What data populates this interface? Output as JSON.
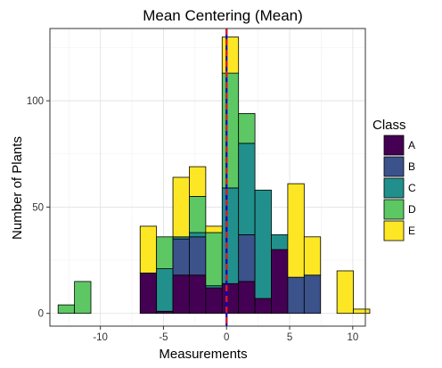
{
  "chart_data": {
    "type": "bar",
    "stacked": true,
    "title": "Mean Centering (Mean)",
    "xlabel": "Measurements",
    "ylabel": "Number of Plants",
    "xlim": [
      -14,
      11
    ],
    "ylim": [
      -6,
      134
    ],
    "x_ticks": [
      -10,
      -5,
      0,
      5,
      10
    ],
    "y_ticks": [
      0,
      50,
      100
    ],
    "x_tick_labels": [
      "-10",
      "-5",
      "0",
      "5",
      "10"
    ],
    "y_tick_labels": [
      "0",
      "50",
      "100"
    ],
    "bin_width": 1.3,
    "bin_centers": [
      -12.7,
      -11.4,
      -6.2,
      -4.9,
      -3.6,
      -2.3,
      -1.0,
      0.3,
      1.6,
      2.9,
      4.2,
      5.5,
      6.8,
      9.4,
      10.7
    ],
    "legend": {
      "title": "Class",
      "position": "right"
    },
    "series": [
      {
        "name": "A",
        "color": "#440154",
        "values": [
          0,
          0,
          19,
          1,
          18,
          18,
          12,
          14,
          15,
          7,
          30,
          0,
          0,
          0,
          0
        ]
      },
      {
        "name": "B",
        "color": "#3B528B",
        "values": [
          0,
          0,
          0,
          0,
          17,
          18,
          0,
          0,
          22,
          0,
          0,
          17,
          18,
          0,
          0
        ]
      },
      {
        "name": "C",
        "color": "#21908C",
        "values": [
          0,
          0,
          0,
          20,
          1,
          2,
          1,
          45,
          43,
          51,
          7,
          0,
          0,
          0,
          0
        ]
      },
      {
        "name": "D",
        "color": "#5DC863",
        "values": [
          4,
          15,
          0,
          15,
          0,
          17,
          25,
          54,
          14,
          0,
          0,
          0,
          0,
          0,
          0
        ]
      },
      {
        "name": "E",
        "color": "#FDE725",
        "values": [
          0,
          0,
          22,
          0,
          28,
          14,
          3,
          17,
          0,
          0,
          0,
          44,
          18,
          20,
          2
        ]
      }
    ],
    "mean_line": {
      "x": 0,
      "colors": [
        "#0000CD",
        "#E31A1C"
      ]
    },
    "grid": true
  }
}
